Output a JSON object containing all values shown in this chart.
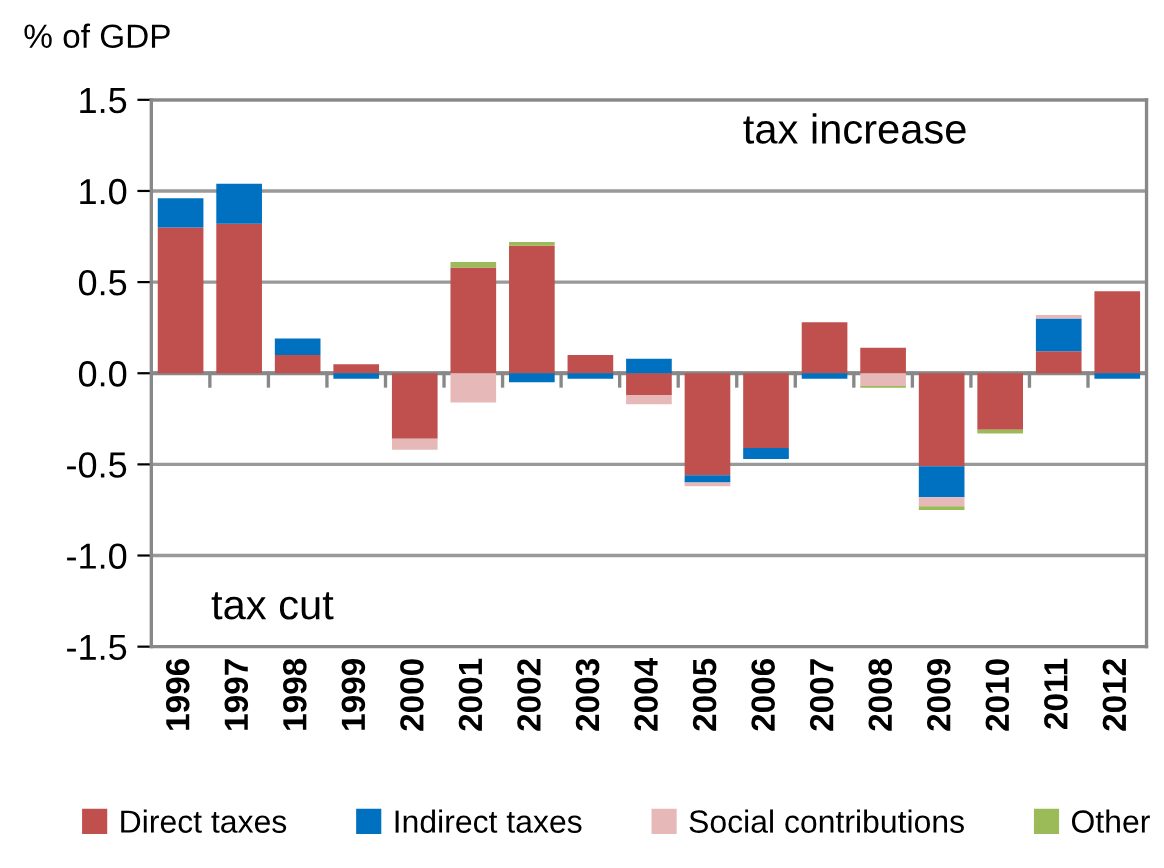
{
  "chart_data": {
    "type": "bar",
    "stacked": true,
    "ylabel": "% of GDP",
    "categories": [
      "1996",
      "1997",
      "1998",
      "1999",
      "2000",
      "2001",
      "2002",
      "2003",
      "2004",
      "2005",
      "2006",
      "2007",
      "2008",
      "2009",
      "2010",
      "2011",
      "2012"
    ],
    "series": [
      {
        "name": "Direct taxes",
        "color": "#c0504d",
        "values": [
          0.8,
          0.82,
          0.1,
          0.05,
          -0.36,
          0.58,
          0.7,
          0.1,
          -0.12,
          -0.56,
          -0.41,
          0.28,
          0.14,
          -0.51,
          -0.31,
          0.12,
          0.45
        ]
      },
      {
        "name": "Indirect taxes",
        "color": "#0070c0",
        "values": [
          0.16,
          0.22,
          0.09,
          -0.03,
          0,
          0,
          -0.05,
          -0.03,
          0.08,
          -0.04,
          -0.06,
          -0.03,
          0,
          -0.17,
          0,
          0.18,
          -0.03
        ]
      },
      {
        "name": "Social contributions",
        "color": "#e6b9b8",
        "values": [
          0,
          0,
          0,
          0,
          -0.06,
          -0.16,
          0,
          0,
          -0.05,
          -0.02,
          0,
          0,
          -0.07,
          -0.05,
          0,
          0.02,
          0
        ]
      },
      {
        "name": "Other",
        "color": "#9bbb59",
        "values": [
          0,
          0,
          0,
          0,
          0,
          0.03,
          0.02,
          0,
          0,
          0,
          0,
          0,
          -0.01,
          -0.02,
          -0.02,
          0,
          0
        ]
      }
    ],
    "ylim": [
      -1.5,
      1.5
    ],
    "yticks": [
      {
        "value": -1.5,
        "label": "-1.5"
      },
      {
        "value": -1.0,
        "label": "-1.0"
      },
      {
        "value": -0.5,
        "label": "-0.5"
      },
      {
        "value": 0.0,
        "label": "0.0"
      },
      {
        "value": 0.5,
        "label": "0.5"
      },
      {
        "value": 1.0,
        "label": "1.0"
      },
      {
        "value": 1.5,
        "label": "1.5"
      }
    ],
    "grid": "y",
    "legend": "bottom",
    "annotations": [
      "tax increase",
      "tax cut"
    ]
  }
}
